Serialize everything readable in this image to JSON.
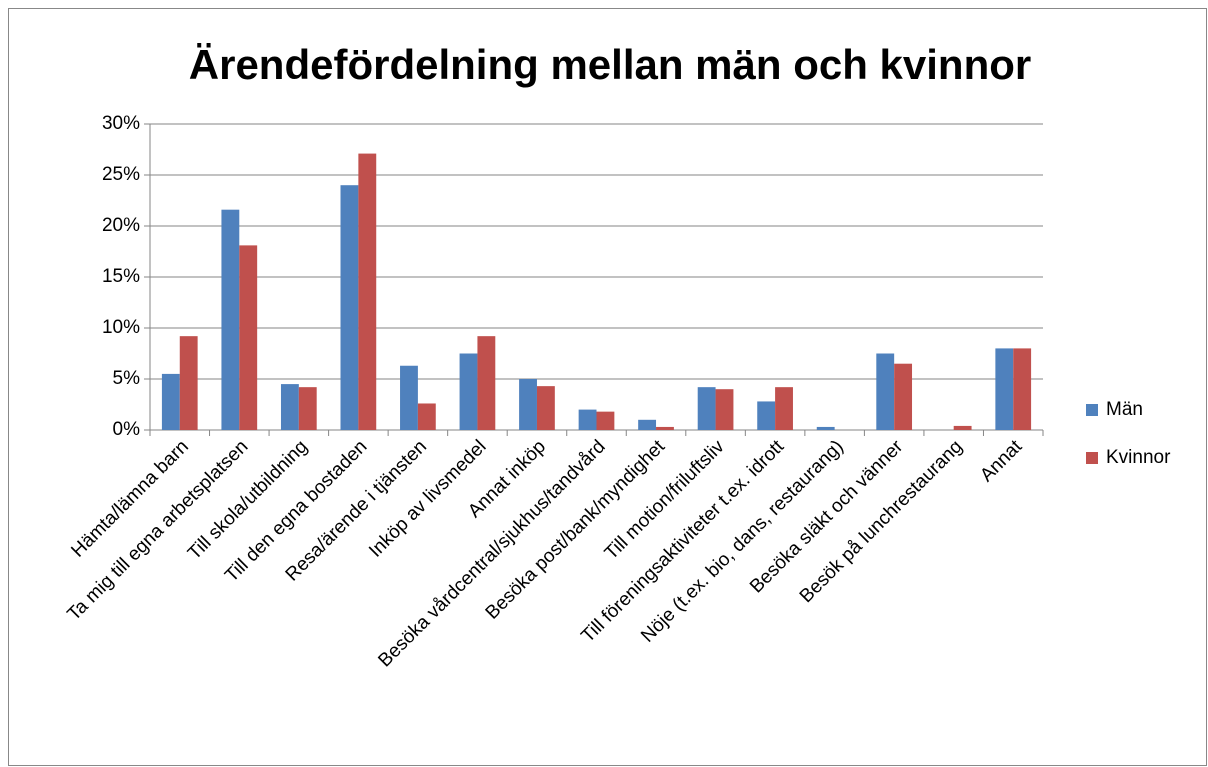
{
  "chart_data": {
    "type": "bar",
    "title": "Ärendefördelning mellan män och kvinnor",
    "categories": [
      "Hämta/lämna barn",
      "Ta mig till egna arbetsplatsen",
      "Till skola/utbildning",
      "Till den egna bostaden",
      "Resa/ärende i tjänsten",
      "Inköp av livsmedel",
      "Annat inköp",
      "Besöka vårdcentral/sjukhus/tandvård",
      "Besöka post/bank/myndighet",
      "Till motion/friluftsliv",
      "Till föreningsaktiviteter t.ex. idrott",
      "Nöje (t.ex. bio, dans, restaurang)",
      "Besöka släkt och vänner",
      "Besök på lunchrestaurang",
      "Annat"
    ],
    "series": [
      {
        "name": "Män",
        "color": "#4f81bd",
        "values": [
          5.5,
          21.6,
          4.5,
          24.0,
          6.3,
          7.5,
          5.0,
          2.0,
          1.0,
          4.2,
          2.8,
          0.3,
          7.5,
          0,
          8.0
        ]
      },
      {
        "name": "Kvinnor",
        "color": "#c0504d",
        "values": [
          9.2,
          18.1,
          4.2,
          27.1,
          2.6,
          9.2,
          4.3,
          1.8,
          0.3,
          4.0,
          4.2,
          0,
          6.5,
          0.4,
          8.0
        ]
      }
    ],
    "ylim": [
      0,
      30
    ],
    "yticks": [
      {
        "value": 0,
        "label": "0%"
      },
      {
        "value": 5,
        "label": "5%"
      },
      {
        "value": 10,
        "label": "10%"
      },
      {
        "value": 15,
        "label": "15%"
      },
      {
        "value": 20,
        "label": "20%"
      },
      {
        "value": 25,
        "label": "25%"
      },
      {
        "value": 30,
        "label": "30%"
      }
    ],
    "grid": true,
    "legend": "right"
  }
}
